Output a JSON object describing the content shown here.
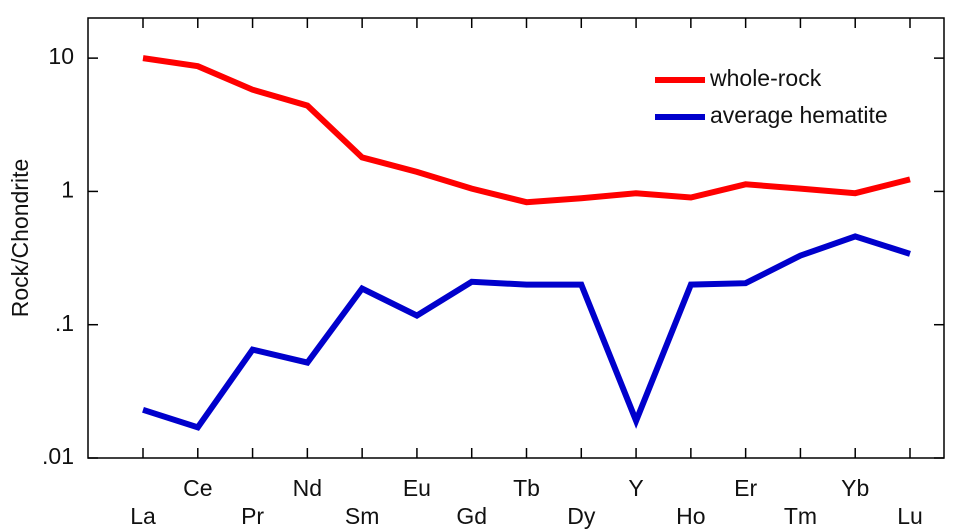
{
  "chart_data": {
    "type": "line",
    "y_label": "Rock/Chondrite",
    "categories": [
      "La",
      "Ce",
      "Pr",
      "Nd",
      "Sm",
      "Eu",
      "Gd",
      "Tb",
      "Dy",
      "Y",
      "Ho",
      "Er",
      "Tm",
      "Yb",
      "Lu"
    ],
    "series": [
      {
        "name": "whole-rock",
        "color": "#ff0000",
        "values": [
          10,
          8.7,
          5.8,
          4.4,
          1.8,
          1.4,
          1.05,
          0.83,
          0.89,
          0.97,
          0.9,
          1.13,
          1.05,
          0.97,
          1.23
        ]
      },
      {
        "name": "average hematite",
        "color": "#0000cc",
        "values": [
          0.023,
          0.017,
          0.065,
          0.052,
          0.187,
          0.117,
          0.21,
          0.2,
          0.2,
          0.019,
          0.2,
          0.205,
          0.33,
          0.46,
          0.34
        ]
      }
    ],
    "ylim": [
      0.01,
      20
    ],
    "yticks": [
      {
        "value": 0.01,
        "label": ".01"
      },
      {
        "value": 0.1,
        "label": ".1"
      },
      1,
      10
    ],
    "log_scale": true,
    "legend": "upper right"
  }
}
